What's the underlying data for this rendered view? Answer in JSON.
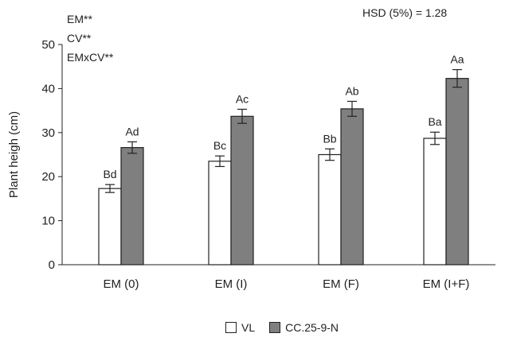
{
  "chart_data": {
    "type": "bar",
    "ylabel": "Plant  heigh (cm)",
    "xlabel": "",
    "ylim": [
      0,
      50
    ],
    "yticks": [
      0,
      10,
      20,
      30,
      40,
      50
    ],
    "categories": [
      "EM (0)",
      "EM (I)",
      "EM (F)",
      "EM (I+F)"
    ],
    "series": [
      {
        "name": "VL",
        "color": "#ffffff",
        "values": [
          17.3,
          23.5,
          25.0,
          28.7
        ],
        "errors": [
          0.9,
          1.2,
          1.3,
          1.4
        ],
        "labels": [
          "Bd",
          "Bc",
          "Bb",
          "Ba"
        ]
      },
      {
        "name": "CC.25-9-N",
        "color": "#7f7f7f",
        "values": [
          26.6,
          33.7,
          35.4,
          42.3
        ],
        "errors": [
          1.3,
          1.6,
          1.7,
          2.0
        ],
        "labels": [
          "Ad",
          "Ac",
          "Ab",
          "Aa"
        ]
      }
    ],
    "annotations": [
      "EM**",
      "CV**",
      "EMxCV**"
    ],
    "hsd_text": "HSD (5%) = 1.28",
    "grid": false,
    "legend_position": "bottom"
  }
}
